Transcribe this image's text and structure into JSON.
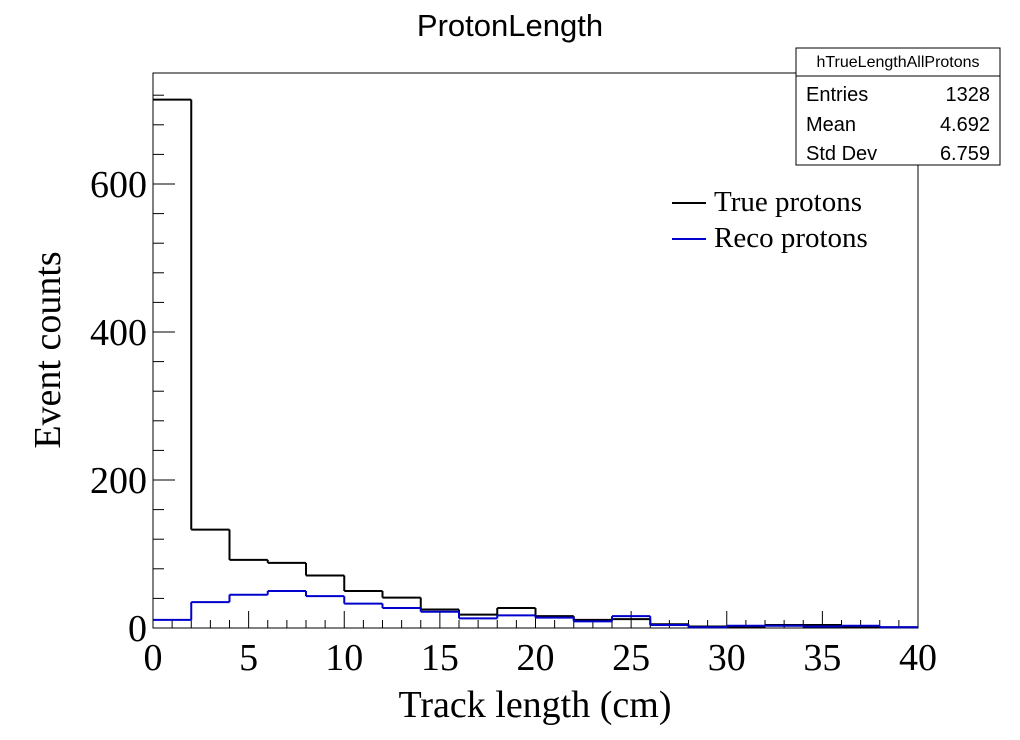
{
  "chart_data": {
    "type": "bar",
    "histogram": true,
    "title": "ProtonLength",
    "xlabel": "Track length (cm)",
    "ylabel": "Event counts",
    "xlim": [
      0,
      40
    ],
    "ylim": [
      0,
      750
    ],
    "bin_width": 2,
    "x_ticks": [
      0,
      5,
      10,
      15,
      20,
      25,
      30,
      35,
      40
    ],
    "y_ticks": [
      0,
      200,
      400,
      600
    ],
    "grid": false,
    "legend_position": "top-right",
    "series": [
      {
        "name": "True protons",
        "color": "#000000",
        "values": [
          714,
          133,
          92,
          88,
          71,
          50,
          41,
          25,
          18,
          27,
          16,
          11,
          12,
          5,
          2,
          2,
          4,
          4,
          2,
          1
        ]
      },
      {
        "name": "Reco protons",
        "color": "#0000cc",
        "values": [
          11,
          35,
          45,
          50,
          43,
          33,
          27,
          22,
          13,
          17,
          14,
          9,
          16,
          4,
          1,
          3,
          3,
          2,
          3,
          1
        ]
      }
    ],
    "stats_box": {
      "name": "hTrueLengthAllProtons",
      "rows": [
        {
          "label": "Entries",
          "value": "1328"
        },
        {
          "label": "Mean",
          "value": "4.692"
        },
        {
          "label": "Std Dev",
          "value": "6.759"
        }
      ]
    }
  }
}
